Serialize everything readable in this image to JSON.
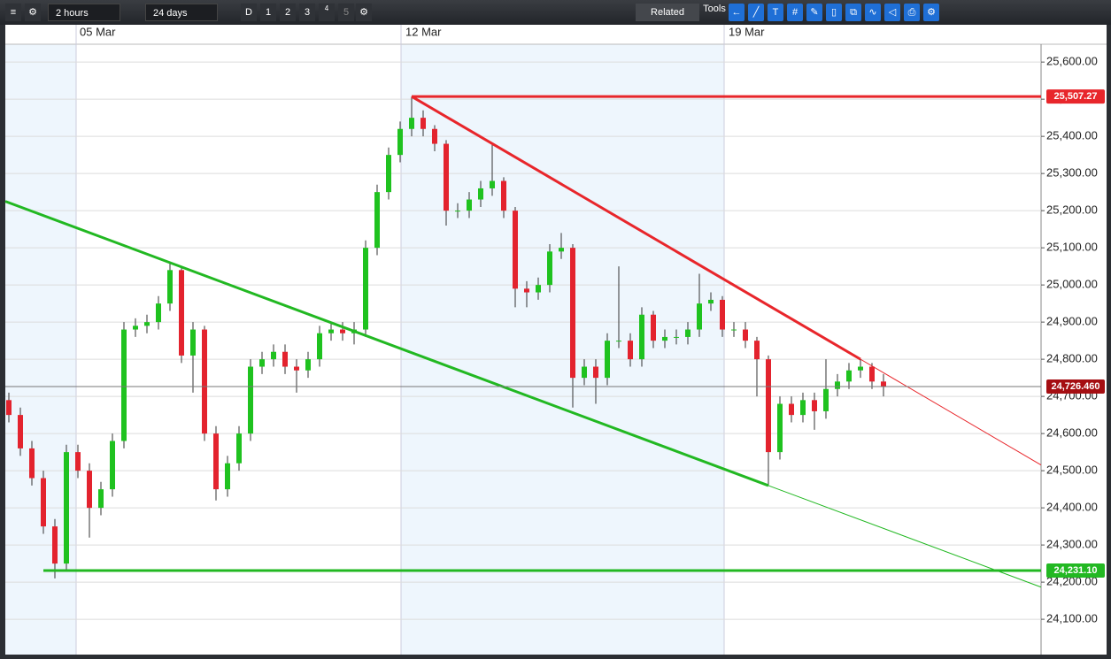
{
  "toolbar": {
    "interval": "2 hours",
    "range": "24 days",
    "period_buttons": [
      "D",
      "1",
      "2",
      "3",
      "4",
      "5"
    ],
    "related": "Related",
    "tools": "Tools"
  },
  "chart_data": {
    "type": "candlestick",
    "x_labels": [
      "05 Mar",
      "12 Mar",
      "19 Mar"
    ],
    "ylim": [
      24005,
      25648
    ],
    "yticks": [
      {
        "value": 24100,
        "label": "24,100.00"
      },
      {
        "value": 24200,
        "label": "24,200.00"
      },
      {
        "value": 24300,
        "label": "24,300.00"
      },
      {
        "value": 24400,
        "label": "24,400.00"
      },
      {
        "value": 24500,
        "label": "24,500.00"
      },
      {
        "value": 24600,
        "label": "24,600.00"
      },
      {
        "value": 24700,
        "label": "24,700.00"
      },
      {
        "value": 24800,
        "label": "24,800.00"
      },
      {
        "value": 24900,
        "label": "24,900.00"
      },
      {
        "value": 25000,
        "label": "25,000.00"
      },
      {
        "value": 25100,
        "label": "25,100.00"
      },
      {
        "value": 25200,
        "label": "25,200.00"
      },
      {
        "value": 25300,
        "label": "25,300.00"
      },
      {
        "value": 25400,
        "label": "25,400.00"
      },
      {
        "value": 25500,
        "label": "25,500.00"
      },
      {
        "value": 25600,
        "label": "25,600.00"
      }
    ],
    "grid": true,
    "up_color": "#1fc21f",
    "down_color": "#e3232e",
    "open": [
      24690,
      24650,
      24560,
      24480,
      24350,
      24250,
      24550,
      24500,
      24400,
      24450,
      24580,
      24880,
      24890,
      24900,
      24950,
      25040,
      24810,
      24880,
      24600,
      24450,
      24520,
      24600,
      24780,
      24800,
      24820,
      24780,
      24770,
      24800,
      24870,
      24880,
      24870,
      24880,
      25100,
      25250,
      25350,
      25420,
      25450,
      25420,
      25380,
      25200,
      25200,
      25230,
      25260,
      25280,
      25200,
      24990,
      24980,
      25000,
      25090,
      25100,
      24750,
      24780,
      24750,
      24850,
      24850,
      24800,
      24920,
      24850,
      24860,
      24860,
      24880,
      24950,
      24960,
      24880,
      24880,
      24850,
      24800,
      24550,
      24680,
      24650,
      24690,
      24660,
      24720,
      24740,
      24770,
      24780,
      24740
    ],
    "high": [
      24710,
      24670,
      24580,
      24500,
      24370,
      24570,
      24570,
      24520,
      24470,
      24600,
      24900,
      24910,
      24920,
      24970,
      25060,
      25050,
      24900,
      24890,
      24620,
      24540,
      24620,
      24800,
      24820,
      24840,
      24840,
      24800,
      24820,
      24890,
      24900,
      24900,
      24900,
      25120,
      25270,
      25370,
      25440,
      25507.27,
      25470,
      25430,
      25390,
      25220,
      25250,
      25280,
      25380,
      25290,
      25210,
      25010,
      25020,
      25110,
      25140,
      25110,
      24800,
      24800,
      24870,
      25050,
      24870,
      24940,
      24930,
      24880,
      24880,
      24900,
      25030,
      24980,
      24970,
      24900,
      24900,
      24860,
      24810,
      24700,
      24700,
      24710,
      24710,
      24800,
      24760,
      24790,
      24800,
      24790,
      24760
    ],
    "low": [
      24630,
      24540,
      24460,
      24330,
      24210,
      24230,
      24480,
      24320,
      24380,
      24430,
      24560,
      24860,
      24870,
      24880,
      24930,
      24790,
      24710,
      24580,
      24420,
      24430,
      24500,
      24580,
      24760,
      24780,
      24760,
      24710,
      24750,
      24780,
      24850,
      24850,
      24840,
      24860,
      25080,
      25230,
      25330,
      25400,
      25400,
      25360,
      25160,
      25180,
      25180,
      25210,
      25240,
      25180,
      24940,
      24940,
      24960,
      24980,
      25070,
      24670,
      24730,
      24680,
      24730,
      24830,
      24780,
      24780,
      24830,
      24830,
      24840,
      24840,
      24860,
      24930,
      24860,
      24860,
      24830,
      24700,
      24460,
      24530,
      24630,
      24630,
      24610,
      24640,
      24700,
      24720,
      24750,
      24720,
      24700
    ],
    "close": [
      24650,
      24560,
      24480,
      24350,
      24250,
      24550,
      24500,
      24400,
      24450,
      24580,
      24880,
      24890,
      24900,
      24950,
      25040,
      24810,
      24880,
      24600,
      24450,
      24520,
      24600,
      24780,
      24800,
      24820,
      24780,
      24770,
      24800,
      24870,
      24880,
      24870,
      24880,
      25100,
      25250,
      25350,
      25420,
      25450,
      25420,
      25380,
      25200,
      25200,
      25230,
      25260,
      25280,
      25200,
      24990,
      24980,
      25000,
      25090,
      25100,
      24750,
      24780,
      24750,
      24850,
      24850,
      24800,
      24920,
      24850,
      24860,
      24860,
      24880,
      24950,
      24960,
      24880,
      24880,
      24850,
      24800,
      24550,
      24680,
      24650,
      24690,
      24660,
      24720,
      24740,
      24770,
      24780,
      24740,
      24726.46
    ],
    "trend_lines": [
      {
        "color": "#e8262b",
        "from": [
          35,
          25507.27
        ],
        "to": [
          74,
          24800
        ]
      },
      {
        "color": "#22b822",
        "from": [
          14,
          25060
        ],
        "to": [
          66,
          24460
        ]
      }
    ],
    "levels": [
      {
        "value": 25507.27,
        "label": "25,507.27",
        "color": "#e8262b",
        "from": 35
      },
      {
        "value": 24726.46,
        "label": "24,726.460",
        "color": "#a50e12",
        "from": 0
      },
      {
        "value": 24231.1,
        "label": "24,231.10",
        "color": "#22b822",
        "from": 3
      }
    ]
  }
}
